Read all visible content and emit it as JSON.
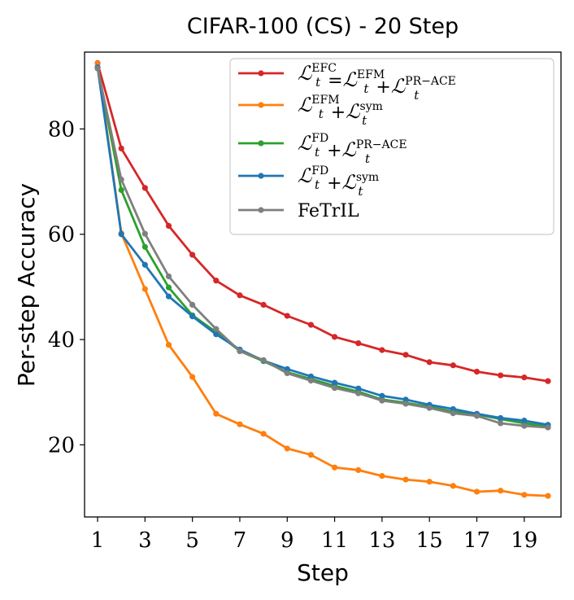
{
  "chart_data": {
    "type": "line",
    "title": "CIFAR-100 (CS) - 20 Step",
    "xlabel": "Step",
    "ylabel": "Per-step Accuracy",
    "xlim": [
      0.45,
      20.55
    ],
    "ylim": [
      6.3,
      94.6
    ],
    "xticks": [
      1,
      3,
      5,
      7,
      9,
      11,
      13,
      15,
      17,
      19
    ],
    "yticks": [
      20,
      40,
      60,
      80
    ],
    "grid": false,
    "legend_position": "top-right",
    "x": [
      1,
      2,
      3,
      4,
      5,
      6,
      7,
      8,
      9,
      10,
      11,
      12,
      13,
      14,
      15,
      16,
      17,
      18,
      19,
      20
    ],
    "series": [
      {
        "name": "L_t^EFC = L_t^EFM + L_t^PR-ACE",
        "color": "#d62728",
        "legend": {
          "t1": "ℒ",
          "s1": "EFC",
          "op1": "=",
          "t2": "ℒ",
          "s2": "EFM",
          "op2": "+",
          "t3": "ℒ",
          "s3": "PR−ACE",
          "sub": "t"
        },
        "values": [
          92.5,
          76.3,
          68.8,
          61.6,
          56.1,
          51.2,
          48.4,
          46.6,
          44.5,
          42.8,
          40.5,
          39.3,
          38.0,
          37.1,
          35.7,
          35.1,
          33.9,
          33.2,
          32.8,
          32.1
        ]
      },
      {
        "name": "L_t^EFM + L_t^sym",
        "color": "#ff7f0e",
        "legend": {
          "t1": "ℒ",
          "s1": "EFM",
          "op1": "+",
          "t2": "ℒ",
          "s2": "sym",
          "sub": "t"
        },
        "values": [
          92.4,
          60.2,
          49.6,
          39.0,
          32.9,
          25.9,
          23.9,
          22.1,
          19.3,
          18.1,
          15.7,
          15.2,
          14.1,
          13.4,
          13.0,
          12.2,
          11.1,
          11.3,
          10.5,
          10.3
        ]
      },
      {
        "name": "L_t^FD + L_t^PR-ACE",
        "color": "#2ca02c",
        "legend": {
          "t1": "ℒ",
          "s1": "FD",
          "op1": "+",
          "t2": "ℒ",
          "s2": "PR−ACE",
          "sub": "t"
        },
        "values": [
          91.7,
          68.4,
          57.6,
          49.9,
          44.6,
          41.4,
          37.8,
          35.9,
          33.8,
          32.5,
          31.2,
          30.1,
          28.6,
          28.0,
          27.2,
          26.3,
          25.8,
          24.9,
          24.1,
          23.5
        ]
      },
      {
        "name": "L_t^FD + L_t^sym",
        "color": "#1f77b4",
        "legend": {
          "t1": "ℒ",
          "s1": "FD",
          "op1": "+",
          "t2": "ℒ",
          "s2": "sym",
          "sub": "t"
        },
        "values": [
          91.7,
          60.0,
          54.2,
          48.2,
          44.4,
          41.0,
          38.1,
          36.0,
          34.4,
          33.0,
          31.8,
          30.7,
          29.3,
          28.6,
          27.6,
          26.8,
          25.9,
          25.1,
          24.6,
          23.8
        ]
      },
      {
        "name": "FeTrIL",
        "color": "#7f7f7f",
        "legend": {
          "label": "FeTrIL"
        },
        "values": [
          91.5,
          70.4,
          60.1,
          52.0,
          46.6,
          42.0,
          37.8,
          36.1,
          33.6,
          32.2,
          30.8,
          29.8,
          28.4,
          27.8,
          27.0,
          26.0,
          25.5,
          24.1,
          23.6,
          23.3
        ]
      }
    ]
  }
}
